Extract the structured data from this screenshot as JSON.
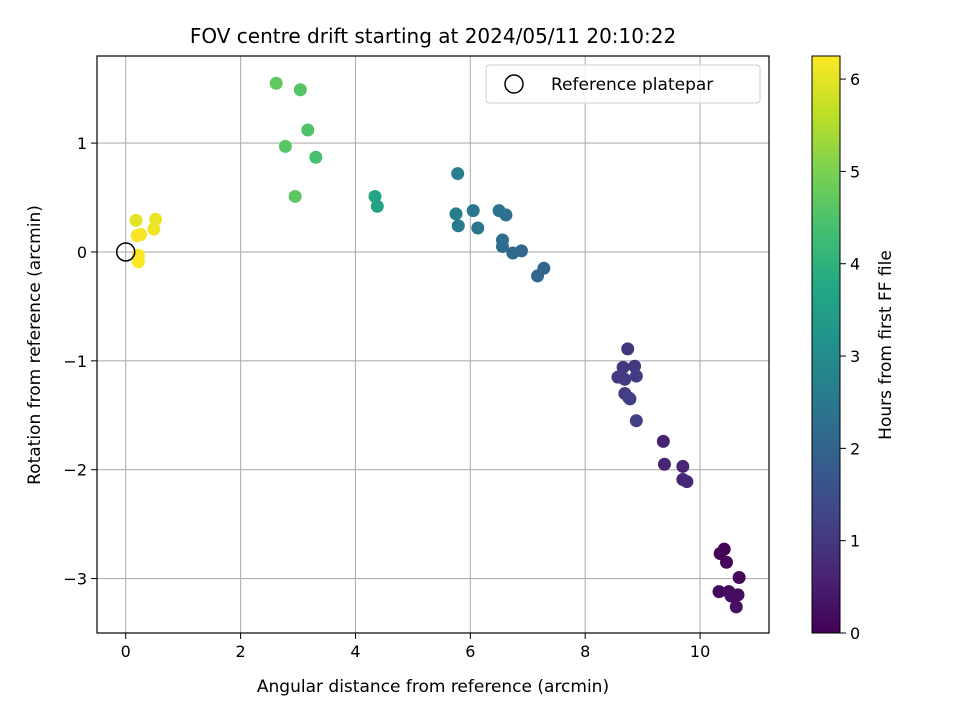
{
  "chart_data": {
    "type": "scatter",
    "title": "FOV centre drift starting at 2024/05/11 20:10:22",
    "xlabel": "Angular distance from reference (arcmin)",
    "ylabel": "Rotation from reference (arcmin)",
    "xlim": [
      -0.5,
      11.2
    ],
    "ylim": [
      -3.5,
      1.8
    ],
    "xticks": [
      0,
      2,
      4,
      6,
      8,
      10
    ],
    "yticks": [
      -3,
      -2,
      -1,
      0,
      1
    ],
    "grid": true,
    "legend": {
      "position": "top-right",
      "entries": [
        "Reference platepar"
      ]
    },
    "reference_point": {
      "x": 0,
      "y": 0
    },
    "colorbar": {
      "label": "Hours from first FF file",
      "colormap": "viridis",
      "range": [
        0,
        6.25
      ],
      "ticks": [
        0,
        1,
        2,
        3,
        4,
        5,
        6
      ]
    },
    "points": [
      {
        "x": 10.42,
        "y": -2.73,
        "c": 0.05
      },
      {
        "x": 10.35,
        "y": -2.77,
        "c": 0.08
      },
      {
        "x": 10.46,
        "y": -2.85,
        "c": 0.1
      },
      {
        "x": 10.68,
        "y": -2.99,
        "c": 0.12
      },
      {
        "x": 10.33,
        "y": -3.12,
        "c": 0.15
      },
      {
        "x": 10.5,
        "y": -3.12,
        "c": 0.18
      },
      {
        "x": 10.54,
        "y": -3.16,
        "c": 0.2
      },
      {
        "x": 10.66,
        "y": -3.15,
        "c": 0.22
      },
      {
        "x": 10.63,
        "y": -3.26,
        "c": 0.25
      },
      {
        "x": 9.36,
        "y": -1.74,
        "c": 0.6
      },
      {
        "x": 9.38,
        "y": -1.95,
        "c": 0.62
      },
      {
        "x": 9.7,
        "y": -1.97,
        "c": 0.64
      },
      {
        "x": 9.7,
        "y": -2.09,
        "c": 0.66
      },
      {
        "x": 9.77,
        "y": -2.11,
        "c": 0.68
      },
      {
        "x": 8.74,
        "y": -0.89,
        "c": 1.0
      },
      {
        "x": 8.86,
        "y": -1.05,
        "c": 1.02
      },
      {
        "x": 8.66,
        "y": -1.06,
        "c": 1.04
      },
      {
        "x": 8.57,
        "y": -1.15,
        "c": 1.06
      },
      {
        "x": 8.69,
        "y": -1.17,
        "c": 1.08
      },
      {
        "x": 8.89,
        "y": -1.14,
        "c": 1.1
      },
      {
        "x": 8.69,
        "y": -1.3,
        "c": 1.12
      },
      {
        "x": 8.78,
        "y": -1.35,
        "c": 1.14
      },
      {
        "x": 8.76,
        "y": -1.34,
        "c": 1.16
      },
      {
        "x": 8.89,
        "y": -1.55,
        "c": 1.18
      },
      {
        "x": 7.28,
        "y": -0.15,
        "c": 2.0
      },
      {
        "x": 7.17,
        "y": -0.22,
        "c": 2.05
      },
      {
        "x": 6.89,
        "y": 0.01,
        "c": 2.1
      },
      {
        "x": 6.74,
        "y": -0.01,
        "c": 2.15
      },
      {
        "x": 6.56,
        "y": 0.05,
        "c": 2.2
      },
      {
        "x": 6.56,
        "y": 0.11,
        "c": 2.25
      },
      {
        "x": 6.62,
        "y": 0.34,
        "c": 2.3
      },
      {
        "x": 6.5,
        "y": 0.38,
        "c": 2.35
      },
      {
        "x": 6.13,
        "y": 0.22,
        "c": 2.45
      },
      {
        "x": 6.05,
        "y": 0.38,
        "c": 2.5
      },
      {
        "x": 5.79,
        "y": 0.24,
        "c": 2.55
      },
      {
        "x": 5.75,
        "y": 0.35,
        "c": 2.6
      },
      {
        "x": 5.78,
        "y": 0.72,
        "c": 2.65
      },
      {
        "x": 4.38,
        "y": 0.42,
        "c": 3.6
      },
      {
        "x": 4.34,
        "y": 0.51,
        "c": 3.65
      },
      {
        "x": 3.31,
        "y": 0.87,
        "c": 4.4
      },
      {
        "x": 3.17,
        "y": 1.12,
        "c": 4.5
      },
      {
        "x": 3.04,
        "y": 1.49,
        "c": 4.55
      },
      {
        "x": 2.78,
        "y": 0.97,
        "c": 4.6
      },
      {
        "x": 2.95,
        "y": 0.51,
        "c": 4.65
      },
      {
        "x": 2.62,
        "y": 1.55,
        "c": 4.7
      },
      {
        "x": 0.18,
        "y": 0.29,
        "c": 6.0
      },
      {
        "x": 0.52,
        "y": 0.3,
        "c": 6.05
      },
      {
        "x": 0.49,
        "y": 0.21,
        "c": 6.1
      },
      {
        "x": 0.26,
        "y": 0.16,
        "c": 6.15
      },
      {
        "x": 0.2,
        "y": 0.15,
        "c": 6.18
      },
      {
        "x": 0.22,
        "y": -0.03,
        "c": 6.2
      },
      {
        "x": 0.22,
        "y": -0.09,
        "c": 6.22
      }
    ]
  }
}
